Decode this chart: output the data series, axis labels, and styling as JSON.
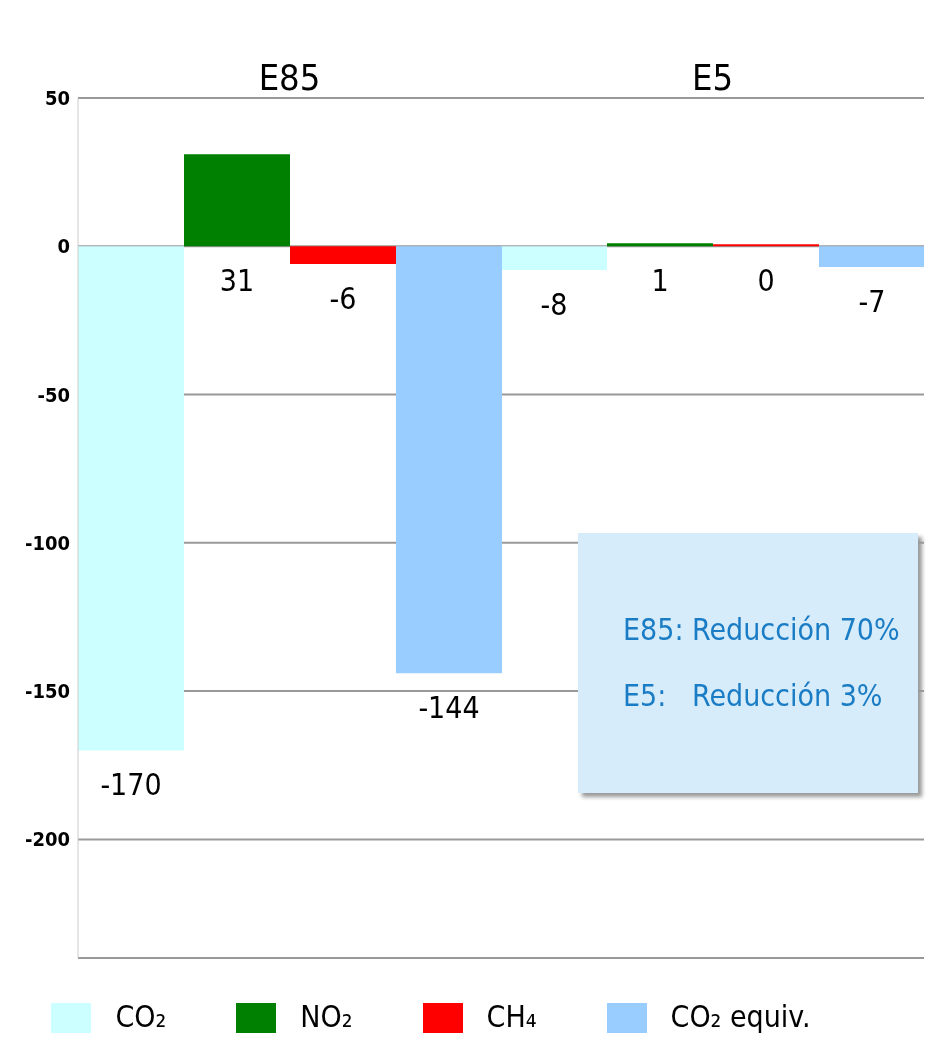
{
  "chart_data": {
    "type": "bar",
    "categories": [
      "E85",
      "E5"
    ],
    "series": [
      {
        "name": "CO₂",
        "color": "#ccffff",
        "values": [
          -170,
          -8
        ]
      },
      {
        "name": "NO₂",
        "color": "#008000",
        "values": [
          31,
          1
        ]
      },
      {
        "name": "CH₄",
        "color": "#ff0000",
        "values": [
          -6,
          0
        ]
      },
      {
        "name": "CO₂ equiv.",
        "color": "#99ccff",
        "values": [
          -144,
          -7
        ]
      }
    ],
    "ylim": [
      -240,
      50
    ],
    "yticks": [
      50,
      0,
      -50,
      -100,
      -150,
      -200
    ],
    "grid": "y",
    "legend": "bottom",
    "data_labels": true,
    "annotations": [
      "E85: Reducción 70%",
      "E5:   Reducción 3%"
    ]
  }
}
